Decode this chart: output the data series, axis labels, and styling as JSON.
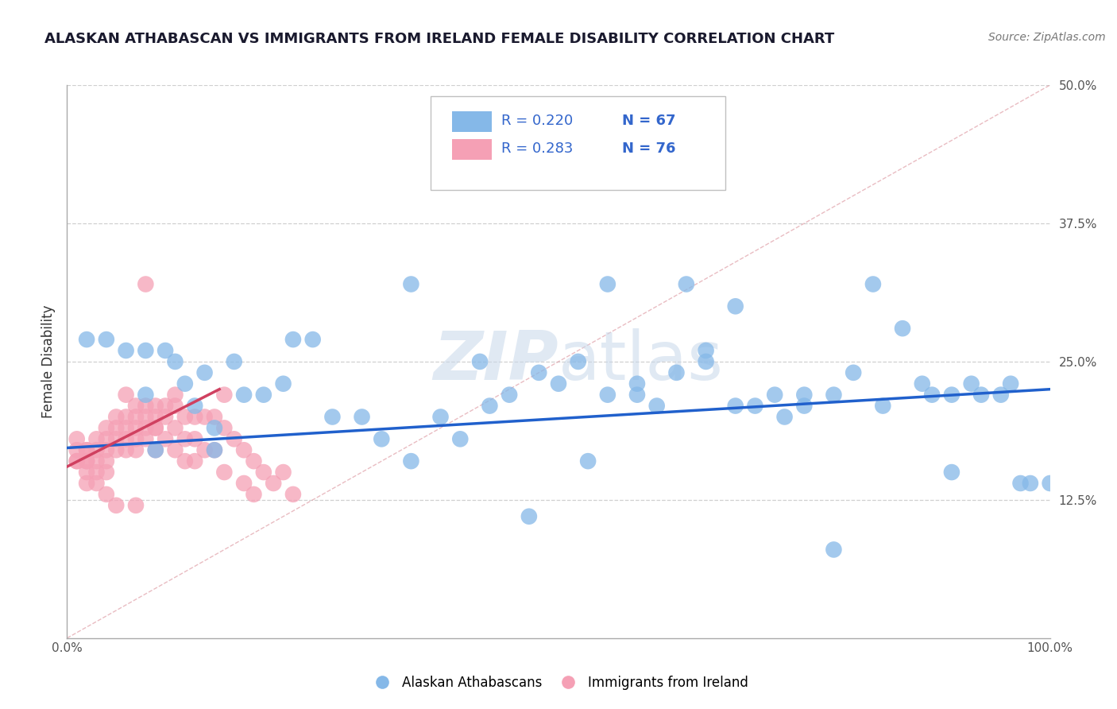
{
  "title": "ALASKAN ATHABASCAN VS IMMIGRANTS FROM IRELAND FEMALE DISABILITY CORRELATION CHART",
  "source": "Source: ZipAtlas.com",
  "ylabel": "Female Disability",
  "xlim": [
    0,
    1.0
  ],
  "ylim": [
    0,
    0.5
  ],
  "yticks": [
    0.125,
    0.25,
    0.375,
    0.5
  ],
  "ytick_labels": [
    "12.5%",
    "25.0%",
    "37.5%",
    "50.0%"
  ],
  "background_color": "#ffffff",
  "grid_color": "#d0d0d0",
  "blue_color": "#85b8e8",
  "pink_color": "#f5a0b5",
  "blue_trend_color": "#2060cc",
  "pink_trend_color": "#d04060",
  "blue_R": "R = 0.220",
  "blue_N": "N = 67",
  "pink_R": "R = 0.283",
  "pink_N": "N = 76",
  "legend_blue": "Alaskan Athabascans",
  "legend_pink": "Immigrants from Ireland",
  "blue_trend_x": [
    0.0,
    1.0
  ],
  "blue_trend_y": [
    0.172,
    0.225
  ],
  "pink_trend_x": [
    0.0,
    0.155
  ],
  "pink_trend_y": [
    0.155,
    0.225
  ],
  "ref_line_x": [
    0.0,
    1.0
  ],
  "ref_line_y": [
    0.0,
    0.5
  ],
  "blue_x": [
    0.02,
    0.04,
    0.06,
    0.08,
    0.09,
    0.1,
    0.11,
    0.12,
    0.13,
    0.14,
    0.15,
    0.17,
    0.18,
    0.2,
    0.22,
    0.23,
    0.25,
    0.27,
    0.3,
    0.32,
    0.35,
    0.38,
    0.4,
    0.43,
    0.45,
    0.48,
    0.5,
    0.53,
    0.55,
    0.58,
    0.6,
    0.62,
    0.63,
    0.65,
    0.68,
    0.7,
    0.72,
    0.73,
    0.75,
    0.78,
    0.8,
    0.82,
    0.85,
    0.87,
    0.88,
    0.9,
    0.92,
    0.93,
    0.95,
    0.96,
    0.97,
    0.98,
    1.0,
    0.35,
    0.42,
    0.55,
    0.65,
    0.75,
    0.83,
    0.9,
    0.47,
    0.52,
    0.58,
    0.68,
    0.78,
    0.08,
    0.15
  ],
  "blue_y": [
    0.27,
    0.27,
    0.26,
    0.26,
    0.17,
    0.26,
    0.25,
    0.23,
    0.21,
    0.24,
    0.19,
    0.25,
    0.22,
    0.22,
    0.23,
    0.27,
    0.27,
    0.2,
    0.2,
    0.18,
    0.16,
    0.2,
    0.18,
    0.21,
    0.22,
    0.24,
    0.23,
    0.16,
    0.22,
    0.23,
    0.21,
    0.24,
    0.32,
    0.26,
    0.3,
    0.21,
    0.22,
    0.2,
    0.22,
    0.22,
    0.24,
    0.32,
    0.28,
    0.23,
    0.22,
    0.22,
    0.23,
    0.22,
    0.22,
    0.23,
    0.14,
    0.14,
    0.14,
    0.32,
    0.25,
    0.32,
    0.25,
    0.21,
    0.21,
    0.15,
    0.11,
    0.25,
    0.22,
    0.21,
    0.08,
    0.22,
    0.17
  ],
  "pink_x": [
    0.01,
    0.01,
    0.01,
    0.01,
    0.02,
    0.02,
    0.02,
    0.02,
    0.02,
    0.03,
    0.03,
    0.03,
    0.03,
    0.04,
    0.04,
    0.04,
    0.04,
    0.04,
    0.05,
    0.05,
    0.05,
    0.05,
    0.06,
    0.06,
    0.06,
    0.06,
    0.07,
    0.07,
    0.07,
    0.07,
    0.08,
    0.08,
    0.08,
    0.08,
    0.09,
    0.09,
    0.09,
    0.09,
    0.1,
    0.1,
    0.1,
    0.11,
    0.11,
    0.11,
    0.12,
    0.12,
    0.12,
    0.13,
    0.13,
    0.14,
    0.14,
    0.15,
    0.15,
    0.16,
    0.16,
    0.17,
    0.18,
    0.18,
    0.19,
    0.2,
    0.21,
    0.22,
    0.23,
    0.06,
    0.11,
    0.16,
    0.08,
    0.13,
    0.19,
    0.07,
    0.09,
    0.02,
    0.04,
    0.03,
    0.05,
    0.07
  ],
  "pink_y": [
    0.16,
    0.17,
    0.18,
    0.16,
    0.17,
    0.16,
    0.17,
    0.15,
    0.16,
    0.18,
    0.17,
    0.16,
    0.15,
    0.19,
    0.18,
    0.17,
    0.16,
    0.15,
    0.2,
    0.19,
    0.18,
    0.17,
    0.2,
    0.19,
    0.18,
    0.17,
    0.21,
    0.2,
    0.19,
    0.17,
    0.21,
    0.2,
    0.19,
    0.18,
    0.21,
    0.2,
    0.19,
    0.17,
    0.21,
    0.2,
    0.18,
    0.21,
    0.19,
    0.17,
    0.2,
    0.18,
    0.16,
    0.2,
    0.18,
    0.2,
    0.17,
    0.2,
    0.17,
    0.19,
    0.15,
    0.18,
    0.17,
    0.14,
    0.16,
    0.15,
    0.14,
    0.15,
    0.13,
    0.22,
    0.22,
    0.22,
    0.32,
    0.16,
    0.13,
    0.18,
    0.19,
    0.14,
    0.13,
    0.14,
    0.12,
    0.12
  ]
}
